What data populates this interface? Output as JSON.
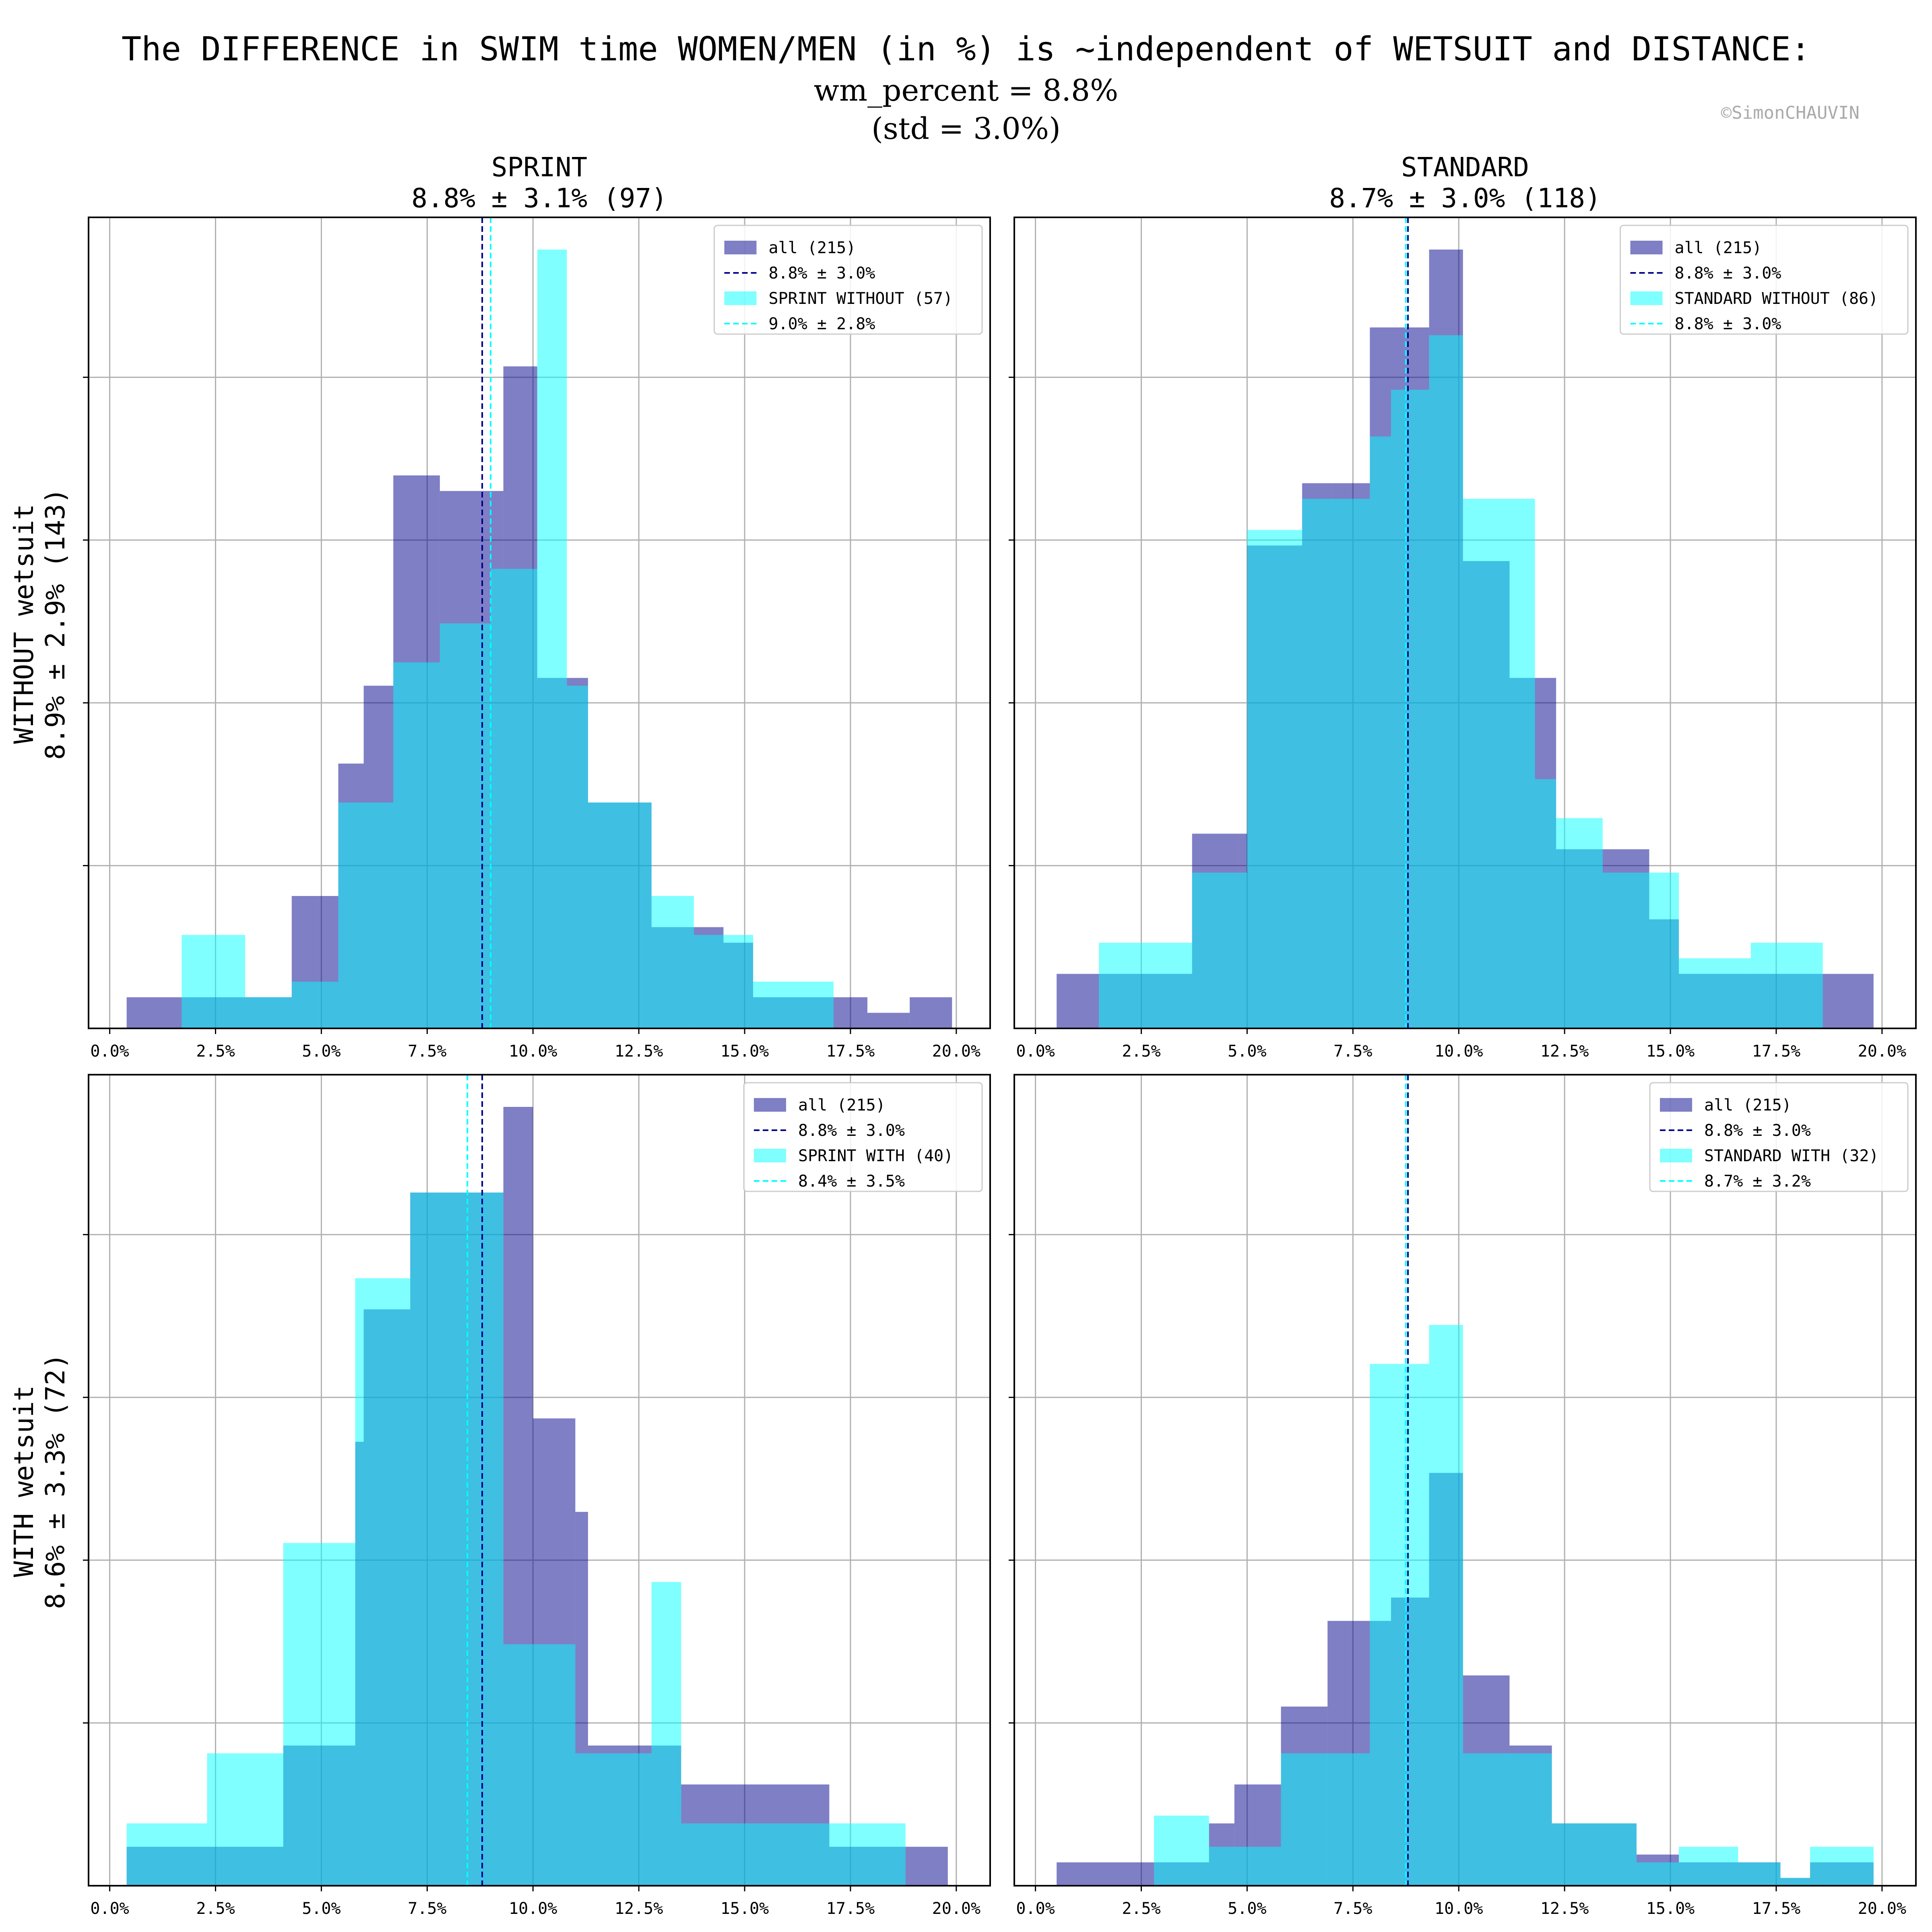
{
  "title": "The DIFFERENCE in SWIM time WOMEN/MEN (in %) is ~independent of WETSUIT and DISTANCE:",
  "subtitle_line1": "wm_percent = 8.8%",
  "subtitle_line2": "(std = 3.0%)",
  "credit": "©SimonCHAUVIN",
  "columns": [
    {
      "name": "SPRINT",
      "stats": "8.8% ± 3.1% (97)"
    },
    {
      "name": "STANDARD",
      "stats": "8.7% ± 3.0% (118)"
    }
  ],
  "rows": [
    {
      "name": "WITHOUT wetsuit",
      "stats": "8.9% ± 2.9% (143)"
    },
    {
      "name": "WITH wetsuit",
      "stats": "8.6% ± 3.3% (72)"
    }
  ],
  "colors": {
    "all": "#00008b",
    "subset": "#00ffff",
    "grid": "#b0b0b0"
  },
  "chart_data": [
    {
      "type": "bar",
      "panel": "SPRINT / WITHOUT wetsuit",
      "xlim": [
        -0.5,
        20.8
      ],
      "ylim": [
        0,
        1.0
      ],
      "xticks": [
        0,
        2.5,
        5,
        7.5,
        10,
        12.5,
        15,
        17.5,
        20
      ],
      "xtick_labels": [
        "0.0%",
        "2.5%",
        "5.0%",
        "7.5%",
        "10.0%",
        "12.5%",
        "15.0%",
        "17.5%",
        "20.0%"
      ],
      "legend_position": "top-right",
      "series": [
        {
          "name": "all (215)",
          "kind": "histogram",
          "edges": [
            0.4,
            1.7,
            3.2,
            4.3,
            5.4,
            6.0,
            6.7,
            7.8,
            9.0,
            9.3,
            10.1,
            10.8,
            11.3,
            12.8,
            13.8,
            14.5,
            15.2,
            17.1,
            17.9,
            18.9,
            19.9
          ],
          "values": [
            0.04,
            0.04,
            0.04,
            0.17,
            0.34,
            0.44,
            0.71,
            0.69,
            0.69,
            0.85,
            0.45,
            0.45,
            0.29,
            0.13,
            0.13,
            0.11,
            0.04,
            0.04,
            0.02,
            0.04
          ]
        },
        {
          "name": "8.8% ± 3.0%",
          "kind": "mean-line",
          "value": 8.8
        },
        {
          "name": "SPRINT WITHOUT (57)",
          "kind": "histogram",
          "edges": [
            1.7,
            3.2,
            4.3,
            5.4,
            6.0,
            6.7,
            7.8,
            9.0,
            9.3,
            10.1,
            10.8,
            11.3,
            12.8,
            13.8,
            14.5,
            15.2,
            17.1
          ],
          "values": [
            0.12,
            0.04,
            0.06,
            0.29,
            0.29,
            0.47,
            0.52,
            0.59,
            0.59,
            1.0,
            0.44,
            0.29,
            0.17,
            0.12,
            0.12,
            0.06
          ]
        },
        {
          "name": "9.0% ± 2.8%",
          "kind": "mean-line",
          "value": 9.0
        }
      ]
    },
    {
      "type": "bar",
      "panel": "STANDARD / WITHOUT wetsuit",
      "xlim": [
        -0.5,
        20.8
      ],
      "ylim": [
        0,
        1.0
      ],
      "xticks": [
        0,
        2.5,
        5,
        7.5,
        10,
        12.5,
        15,
        17.5,
        20
      ],
      "xtick_labels": [
        "0.0%",
        "2.5%",
        "5.0%",
        "7.5%",
        "10.0%",
        "12.5%",
        "15.0%",
        "17.5%",
        "20.0%"
      ],
      "legend_position": "top-right",
      "series": [
        {
          "name": "all (215)",
          "kind": "histogram",
          "edges": [
            0.5,
            1.5,
            3.2,
            3.7,
            4.8,
            5.0,
            5.8,
            6.3,
            7.0,
            7.9,
            8.4,
            9.3,
            10.1,
            11.2,
            11.8,
            12.3,
            13.4,
            14.5,
            15.2,
            16.9,
            17.6,
            18.6,
            19.8
          ],
          "values": [
            0.07,
            0.07,
            0.07,
            0.25,
            0.25,
            0.62,
            0.62,
            0.7,
            0.7,
            0.9,
            0.9,
            1.0,
            0.6,
            0.45,
            0.45,
            0.23,
            0.23,
            0.14,
            0.07,
            0.07,
            0.07,
            0.07
          ]
        },
        {
          "name": "8.8% ± 3.0%",
          "kind": "mean-line",
          "value": 8.8
        },
        {
          "name": "STANDARD WITHOUT (86)",
          "kind": "histogram",
          "edges": [
            1.5,
            3.2,
            3.7,
            4.8,
            5.0,
            5.8,
            6.3,
            7.0,
            7.9,
            8.4,
            9.3,
            10.1,
            11.2,
            11.8,
            12.3,
            13.4,
            14.5,
            15.2,
            16.9,
            17.6,
            18.6
          ],
          "values": [
            0.11,
            0.11,
            0.2,
            0.2,
            0.64,
            0.64,
            0.68,
            0.68,
            0.76,
            0.82,
            0.89,
            0.68,
            0.68,
            0.32,
            0.27,
            0.2,
            0.2,
            0.09,
            0.11,
            0.11
          ]
        },
        {
          "name": "8.8% ± 3.0%",
          "kind": "mean-line",
          "value": 8.75
        }
      ]
    },
    {
      "type": "bar",
      "panel": "SPRINT / WITH wetsuit",
      "xlim": [
        -0.5,
        20.8
      ],
      "ylim": [
        0,
        1.0
      ],
      "xticks": [
        0,
        2.5,
        5,
        7.5,
        10,
        12.5,
        15,
        17.5,
        20
      ],
      "xtick_labels": [
        "0.0%",
        "2.5%",
        "5.0%",
        "7.5%",
        "10.0%",
        "12.5%",
        "15.0%",
        "17.5%",
        "20.0%"
      ],
      "legend_position": "top-right",
      "series": [
        {
          "name": "all (215)",
          "kind": "histogram",
          "edges": [
            0.4,
            2.3,
            3.6,
            4.1,
            4.7,
            5.8,
            6.0,
            7.1,
            8.0,
            9.3,
            10.0,
            11.0,
            11.3,
            12.8,
            13.5,
            15.2,
            17.0,
            18.8,
            19.8
          ],
          "values": [
            0.05,
            0.05,
            0.05,
            0.18,
            0.18,
            0.57,
            0.74,
            0.89,
            0.89,
            1.0,
            0.6,
            0.48,
            0.18,
            0.18,
            0.13,
            0.13,
            0.05,
            0.05
          ]
        },
        {
          "name": "8.8% ± 3.0%",
          "kind": "mean-line",
          "value": 8.8
        },
        {
          "name": "SPRINT WITH (40)",
          "kind": "histogram",
          "edges": [
            0.4,
            2.3,
            3.6,
            4.1,
            4.7,
            5.8,
            6.0,
            7.1,
            8.0,
            9.3,
            10.0,
            11.0,
            11.3,
            12.8,
            13.5,
            15.2,
            17.0,
            18.8
          ],
          "values": [
            0.08,
            0.17,
            0.17,
            0.44,
            0.44,
            0.78,
            0.78,
            0.89,
            0.89,
            0.31,
            0.31,
            0.17,
            0.17,
            0.39,
            0.08,
            0.08,
            0.08
          ]
        },
        {
          "name": "8.4% ± 3.5%",
          "kind": "mean-line",
          "value": 8.45
        }
      ]
    },
    {
      "type": "bar",
      "panel": "STANDARD / WITH wetsuit",
      "xlim": [
        -0.5,
        20.8
      ],
      "ylim": [
        0,
        1.0
      ],
      "xticks": [
        0,
        2.5,
        5,
        7.5,
        10,
        12.5,
        15,
        17.5,
        20
      ],
      "xtick_labels": [
        "0.0%",
        "2.5%",
        "5.0%",
        "7.5%",
        "10.0%",
        "12.5%",
        "15.0%",
        "17.5%",
        "20.0%"
      ],
      "legend_position": "top-right",
      "series": [
        {
          "name": "all (215)",
          "kind": "histogram",
          "edges": [
            0.5,
            2.8,
            4.1,
            4.7,
            5.8,
            6.9,
            7.9,
            8.4,
            9.3,
            10.1,
            11.2,
            12.2,
            13.2,
            14.2,
            15.2,
            16.6,
            17.6,
            18.3,
            19.8
          ],
          "values": [
            0.03,
            0.03,
            0.08,
            0.13,
            0.23,
            0.34,
            0.34,
            0.37,
            0.53,
            0.27,
            0.18,
            0.08,
            0.08,
            0.04,
            0.03,
            0.03,
            0.01,
            0.03
          ]
        },
        {
          "name": "8.8% ± 3.0%",
          "kind": "mean-line",
          "value": 8.8
        },
        {
          "name": "STANDARD WITH (32)",
          "kind": "histogram",
          "edges": [
            2.8,
            4.1,
            4.7,
            5.8,
            6.9,
            7.9,
            8.4,
            9.3,
            10.1,
            11.2,
            12.2,
            13.2,
            14.2,
            15.2,
            16.6,
            17.6,
            18.3,
            19.8
          ],
          "values": [
            0.09,
            0.05,
            0.05,
            0.17,
            0.17,
            0.67,
            0.67,
            0.72,
            0.17,
            0.17,
            0.08,
            0.08,
            0.03,
            0.05,
            0.03,
            0.01,
            0.05
          ]
        },
        {
          "name": "8.7% ± 3.2%",
          "kind": "mean-line",
          "value": 8.75
        }
      ]
    }
  ]
}
